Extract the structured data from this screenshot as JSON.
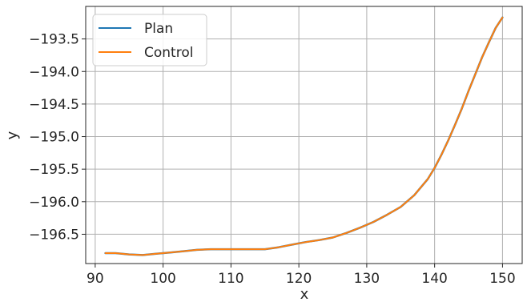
{
  "chart_data": {
    "type": "line",
    "title": "",
    "xlabel": "x",
    "ylabel": "y",
    "xlim": [
      88.6,
      152.9
    ],
    "ylim": [
      -196.95,
      -193.0
    ],
    "xticks": [
      90,
      100,
      110,
      120,
      130,
      140,
      150
    ],
    "xtick_labels": [
      "90",
      "100",
      "110",
      "120",
      "130",
      "140",
      "150"
    ],
    "yticks": [
      -193.5,
      -194.0,
      -194.5,
      -195.0,
      -195.5,
      -196.0,
      -196.5
    ],
    "ytick_labels": [
      "−193.5",
      "−194.0",
      "−194.5",
      "−195.0",
      "−195.5",
      "−196.0",
      "−196.5"
    ],
    "grid": true,
    "legend_position": "top-left",
    "series": [
      {
        "name": "Plan",
        "color": "#1f77b4",
        "x": [
          91.5,
          93,
          95,
          97,
          99,
          101,
          103,
          105,
          107,
          110,
          113,
          115,
          117,
          119,
          121,
          123,
          125,
          127,
          129,
          131,
          133,
          135,
          137,
          139,
          140,
          141,
          142,
          143,
          144,
          145,
          146,
          147,
          148,
          149,
          150
        ],
        "y": [
          -196.79,
          -196.79,
          -196.81,
          -196.82,
          -196.8,
          -196.78,
          -196.76,
          -196.74,
          -196.73,
          -196.73,
          -196.73,
          -196.73,
          -196.7,
          -196.66,
          -196.62,
          -196.59,
          -196.55,
          -196.48,
          -196.4,
          -196.31,
          -196.2,
          -196.08,
          -195.9,
          -195.65,
          -195.48,
          -195.28,
          -195.06,
          -194.82,
          -194.57,
          -194.3,
          -194.04,
          -193.78,
          -193.55,
          -193.33,
          -193.17
        ]
      },
      {
        "name": "Control",
        "color": "#ff7f0e",
        "x": [
          91.5,
          93,
          95,
          97,
          99,
          101,
          103,
          105,
          107,
          110,
          113,
          115,
          117,
          119,
          121,
          123,
          125,
          127,
          129,
          131,
          133,
          135,
          137,
          139,
          140,
          141,
          142,
          143,
          144,
          145,
          146,
          147,
          148,
          149,
          150
        ],
        "y": [
          -196.79,
          -196.79,
          -196.81,
          -196.82,
          -196.8,
          -196.78,
          -196.76,
          -196.74,
          -196.73,
          -196.73,
          -196.73,
          -196.73,
          -196.7,
          -196.66,
          -196.62,
          -196.59,
          -196.55,
          -196.48,
          -196.4,
          -196.31,
          -196.2,
          -196.08,
          -195.9,
          -195.65,
          -195.48,
          -195.28,
          -195.06,
          -194.82,
          -194.57,
          -194.3,
          -194.04,
          -193.78,
          -193.55,
          -193.33,
          -193.17
        ]
      }
    ]
  }
}
